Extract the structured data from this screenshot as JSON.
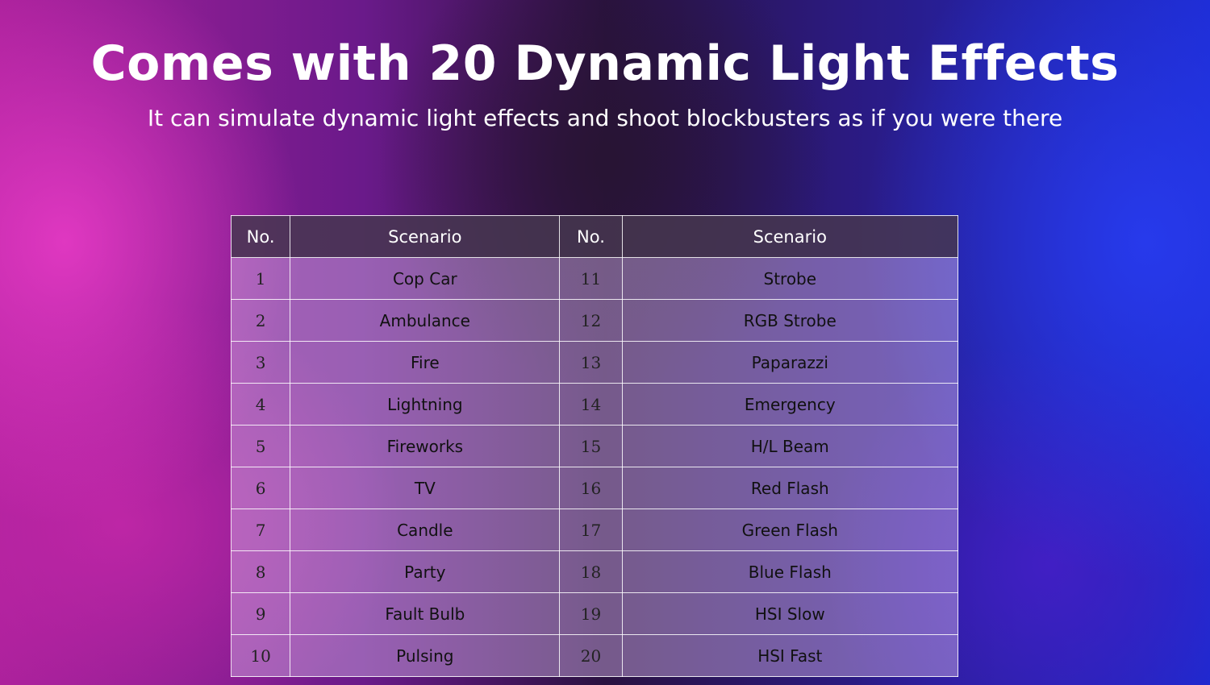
{
  "title": "Comes with 20 Dynamic Light Effects",
  "subtitle": "It can simulate dynamic light effects and shoot blockbusters as if you were there",
  "table": {
    "headers": [
      "No.",
      "Scenario",
      "No.",
      "Scenario"
    ],
    "rows": [
      [
        "1",
        "Cop Car",
        "11",
        "Strobe"
      ],
      [
        "2",
        "Ambulance",
        "12",
        "RGB Strobe"
      ],
      [
        "3",
        "Fire",
        "13",
        "Paparazzi"
      ],
      [
        "4",
        "Lightning",
        "14",
        "Emergency"
      ],
      [
        "5",
        "Fireworks",
        "15",
        "H/L Beam"
      ],
      [
        "6",
        "TV",
        "16",
        "Red Flash"
      ],
      [
        "7",
        "Candle",
        "17",
        "Green Flash"
      ],
      [
        "8",
        "Party",
        "18",
        "Blue Flash"
      ],
      [
        "9",
        "Fault Bulb",
        "19",
        "HSI Slow"
      ],
      [
        "10",
        "Pulsing",
        "20",
        "HSI Fast"
      ]
    ]
  }
}
